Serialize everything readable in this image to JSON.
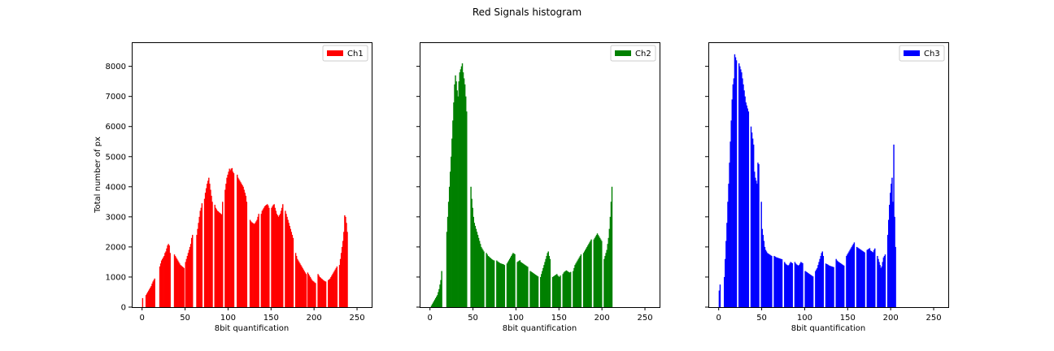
{
  "title": "Red Signals histogram",
  "chart_data": [
    {
      "type": "bar",
      "title": "",
      "xlabel": "8bit quantification",
      "ylabel": "Total number of px",
      "xlim": [
        -12,
        267
      ],
      "ylim": [
        0,
        8800
      ],
      "xticks": [
        0,
        50,
        100,
        150,
        200,
        250
      ],
      "yticks": [
        0,
        1000,
        2000,
        3000,
        4000,
        5000,
        6000,
        7000,
        8000
      ],
      "grid": false,
      "legend_position": "top-right",
      "series": [
        {
          "name": "Ch1",
          "color": "#ff0000",
          "values": [
            300,
            0,
            0,
            0,
            400,
            450,
            500,
            550,
            600,
            650,
            700,
            780,
            850,
            900,
            950,
            0,
            0,
            0,
            0,
            0,
            1350,
            1450,
            1550,
            1600,
            1650,
            1700,
            1800,
            1850,
            1950,
            2050,
            2100,
            2050,
            1800,
            0,
            0,
            0,
            0,
            1750,
            1700,
            1650,
            1600,
            1550,
            1500,
            1450,
            1400,
            1380,
            1350,
            1330,
            1300,
            0,
            1500,
            1600,
            1700,
            1800,
            1900,
            2000,
            2100,
            2300,
            2400,
            0,
            0,
            0,
            0,
            2400,
            2600,
            2800,
            3000,
            3200,
            3300,
            3450,
            0,
            0,
            3600,
            3800,
            3950,
            4100,
            4200,
            4300,
            4100,
            3900,
            3700,
            3500,
            0,
            0,
            3400,
            3300,
            3250,
            3200,
            3180,
            3150,
            3130,
            3100,
            3080,
            3500,
            0,
            0,
            3900,
            4100,
            4300,
            4400,
            4500,
            4600,
            4550,
            4600,
            4620,
            4500,
            4450,
            0,
            0,
            0,
            4400,
            4300,
            4250,
            4200,
            4150,
            4100,
            4050,
            4000,
            3900,
            3800,
            3700,
            3500,
            0,
            0,
            0,
            2900,
            2850,
            2820,
            2800,
            2780,
            2760,
            2800,
            2850,
            2900,
            3000,
            3100,
            0,
            0,
            3100,
            3200,
            3250,
            3300,
            3350,
            3380,
            3400,
            3420,
            3380,
            3300,
            0,
            0,
            3300,
            3350,
            3400,
            3420,
            3300,
            3200,
            3100,
            3050,
            3000,
            3050,
            3100,
            3200,
            3300,
            3420,
            0,
            0,
            3200,
            3100,
            3000,
            2900,
            2800,
            2700,
            2600,
            2500,
            2400,
            2300,
            0,
            0,
            1800,
            1700,
            1600,
            1550,
            1500,
            1450,
            1400,
            1350,
            1300,
            1250,
            1200,
            1150,
            1100,
            0,
            1150,
            1100,
            1050,
            1000,
            950,
            900,
            870,
            850,
            820,
            800,
            0,
            0,
            1100,
            1050,
            1000,
            980,
            950,
            930,
            900,
            880,
            860,
            850,
            0,
            0,
            900,
            920,
            950,
            1000,
            1050,
            1100,
            1150,
            1200,
            1250,
            1300,
            1350,
            0,
            0,
            1400,
            1600,
            1800,
            2000,
            2200,
            2500,
            3050,
            3000,
            2800,
            2500
          ]
        }
      ]
    },
    {
      "type": "bar",
      "title": "",
      "xlabel": "8bit quantification",
      "ylabel": "",
      "xlim": [
        -12,
        267
      ],
      "ylim": [
        0,
        8800
      ],
      "xticks": [
        0,
        50,
        100,
        150,
        200,
        250
      ],
      "yticks": [
        0,
        1000,
        2000,
        3000,
        4000,
        5000,
        6000,
        7000,
        8000
      ],
      "grid": false,
      "legend_position": "top-right",
      "series": [
        {
          "name": "Ch2",
          "color": "#008000",
          "values": [
            0,
            50,
            100,
            150,
            200,
            250,
            300,
            350,
            400,
            500,
            600,
            750,
            900,
            1200,
            0,
            0,
            0,
            0,
            0,
            2500,
            3000,
            3500,
            4000,
            4500,
            5000,
            5600,
            6200,
            6800,
            7400,
            7700,
            7500,
            7200,
            7000,
            7500,
            7800,
            7900,
            8000,
            8100,
            7800,
            7600,
            7400,
            7000,
            6500,
            0,
            0,
            0,
            0,
            4000,
            3600,
            3300,
            3000,
            2800,
            2700,
            2600,
            2500,
            2400,
            2300,
            2200,
            2100,
            2000,
            1950,
            1900,
            1850,
            0,
            0,
            1800,
            1750,
            1700,
            1680,
            1650,
            1630,
            1600,
            1580,
            1560,
            1550,
            0,
            0,
            1550,
            1520,
            1500,
            1480,
            1460,
            1450,
            1440,
            1430,
            1420,
            1400,
            0,
            0,
            1450,
            1500,
            1550,
            1600,
            1650,
            1700,
            1750,
            1800,
            1780,
            1760,
            0,
            0,
            1500,
            1520,
            1540,
            1560,
            1500,
            1480,
            1460,
            1440,
            1420,
            1400,
            1380,
            1360,
            1340,
            0,
            0,
            1200,
            1180,
            1160,
            1140,
            1120,
            1100,
            1080,
            1060,
            1040,
            1020,
            0,
            0,
            1000,
            1100,
            1200,
            1300,
            1400,
            1500,
            1600,
            1700,
            1800,
            1850,
            1700,
            1600,
            0,
            0,
            1000,
            1020,
            1040,
            1060,
            1080,
            1100,
            1050,
            1020,
            1000,
            1050,
            0,
            0,
            1100,
            1150,
            1180,
            1200,
            1220,
            1200,
            1180,
            1160,
            1150,
            1170,
            0,
            0,
            1200,
            1300,
            1400,
            1450,
            1500,
            1550,
            1600,
            1650,
            1700,
            1750,
            0,
            0,
            1800,
            1850,
            1900,
            1950,
            2000,
            2050,
            2100,
            2150,
            2200,
            2250,
            0,
            0,
            2250,
            2300,
            2350,
            2400,
            2450,
            2400,
            2350,
            2300,
            2250,
            2200,
            0,
            0,
            1600,
            1700,
            1800,
            1900,
            2100,
            2300,
            2600,
            3000,
            3500,
            4000
          ]
        }
      ]
    },
    {
      "type": "bar",
      "title": "",
      "xlabel": "8bit quantification",
      "ylabel": "",
      "xlim": [
        -12,
        267
      ],
      "ylim": [
        0,
        8800
      ],
      "xticks": [
        0,
        50,
        100,
        150,
        200,
        250
      ],
      "yticks": [
        0,
        1000,
        2000,
        3000,
        4000,
        5000,
        6000,
        7000,
        8000
      ],
      "grid": false,
      "legend_position": "top-right",
      "series": [
        {
          "name": "Ch3",
          "color": "#0000ff",
          "values": [
            550,
            750,
            0,
            0,
            0,
            0,
            1000,
            1600,
            2200,
            2800,
            3500,
            4100,
            4800,
            5500,
            6200,
            6900,
            7400,
            7600,
            8400,
            8300,
            8200,
            0,
            0,
            8100,
            8000,
            7900,
            7800,
            7600,
            7400,
            7200,
            7000,
            6800,
            6700,
            6600,
            6500,
            0,
            0,
            6000,
            5800,
            5600,
            5400,
            4500,
            4300,
            4200,
            4100,
            4800,
            4750,
            0,
            0,
            3500,
            2600,
            2400,
            2200,
            2000,
            1900,
            1850,
            1800,
            1780,
            1760,
            1740,
            1720,
            1700,
            0,
            0,
            1700,
            1680,
            1660,
            1650,
            1640,
            1630,
            1620,
            1610,
            1600,
            1590,
            0,
            0,
            1500,
            1450,
            1420,
            1400,
            1380,
            1400,
            1450,
            1500,
            1480,
            1460,
            0,
            0,
            1500,
            1450,
            1420,
            1400,
            1380,
            1400,
            1450,
            1500,
            1480,
            1460,
            0,
            0,
            1200,
            1180,
            1160,
            1140,
            1120,
            1100,
            1080,
            1060,
            1040,
            1020,
            0,
            0,
            1200,
            1250,
            1300,
            1400,
            1500,
            1600,
            1700,
            1800,
            1850,
            1700,
            0,
            0,
            1450,
            1430,
            1420,
            1400,
            1380,
            1370,
            1360,
            1350,
            1340,
            1330,
            0,
            0,
            1600,
            1550,
            1520,
            1500,
            1480,
            1460,
            1440,
            1420,
            1400,
            1380,
            0,
            0,
            1700,
            1750,
            1800,
            1850,
            1900,
            1950,
            2000,
            2050,
            2100,
            2150,
            0,
            0,
            2000,
            1980,
            1960,
            1940,
            1920,
            1900,
            1880,
            1860,
            1840,
            1820,
            0,
            0,
            1900,
            1920,
            1940,
            1960,
            1880,
            1860,
            1840,
            1820,
            1900,
            1950,
            0,
            0,
            1700,
            1600,
            1500,
            1400,
            1300,
            1350,
            1500,
            1650,
            1700,
            1750,
            0,
            0,
            2400,
            2900,
            3400,
            3800,
            4100,
            4300,
            3500,
            5400,
            3000,
            2000
          ]
        }
      ]
    }
  ]
}
